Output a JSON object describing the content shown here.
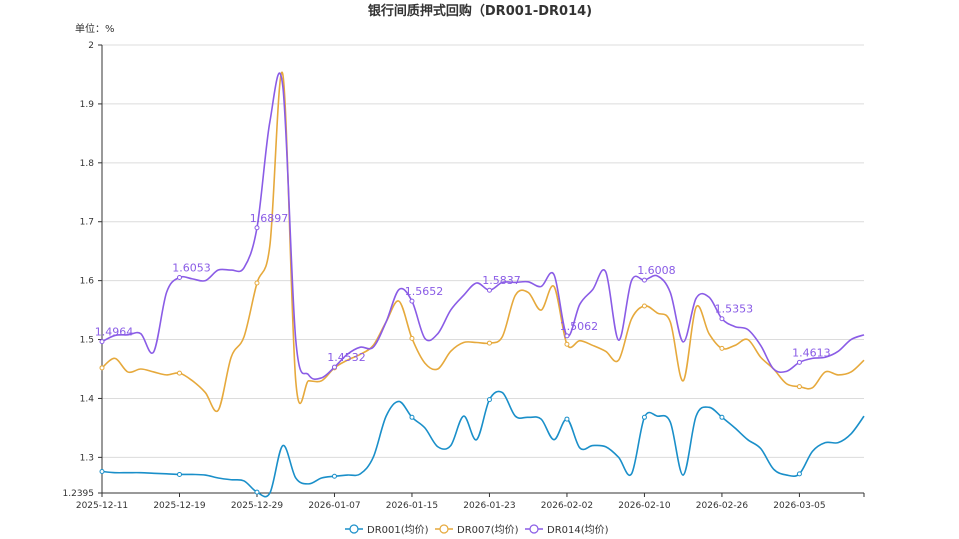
{
  "chart_data": {
    "type": "line",
    "title": "银行间质押式回购（DR001-DR014)",
    "unit_label": "单位：%",
    "ylim": [
      1.2395,
      2
    ],
    "y_ticks": [
      "2",
      "1.9",
      "1.8",
      "1.7",
      "1.6",
      "1.5",
      "1.4",
      "1.3",
      "1.2395"
    ],
    "x_tick_labels": [
      "2025-12-11",
      "2025-12-19",
      "2025-12-29",
      "2026-01-07",
      "2026-01-15",
      "2026-01-23",
      "2026-02-02",
      "2026-02-10",
      "2026-02-26",
      "2026-03-05"
    ],
    "grid": true,
    "smooth": true,
    "legend_position": "bottom",
    "labeled_point_indices": [
      0,
      6,
      12,
      18,
      24,
      30,
      36,
      42,
      48,
      54
    ],
    "series": [
      {
        "name": "DR001(均价)",
        "color": "#1a8fc9",
        "values": [
          1.276,
          1.274,
          1.274,
          1.274,
          1.273,
          1.272,
          1.271,
          1.271,
          1.27,
          1.265,
          1.262,
          1.26,
          1.241,
          1.2395,
          1.32,
          1.265,
          1.255,
          1.265,
          1.268,
          1.27,
          1.272,
          1.3,
          1.37,
          1.395,
          1.368,
          1.35,
          1.318,
          1.32,
          1.37,
          1.33,
          1.398,
          1.41,
          1.37,
          1.368,
          1.365,
          1.33,
          1.365,
          1.316,
          1.32,
          1.318,
          1.3,
          1.272,
          1.368,
          1.37,
          1.36,
          1.27,
          1.37,
          1.385,
          1.368,
          1.35,
          1.33,
          1.315,
          1.28,
          1.27,
          1.272,
          1.31,
          1.325,
          1.325,
          1.34,
          1.37
        ]
      },
      {
        "name": "DR007(均价)",
        "color": "#e6a93c",
        "values": [
          1.452,
          1.468,
          1.445,
          1.45,
          1.445,
          1.44,
          1.443,
          1.43,
          1.41,
          1.38,
          1.47,
          1.505,
          1.596,
          1.66,
          1.95,
          1.43,
          1.43,
          1.43,
          1.452,
          1.465,
          1.475,
          1.49,
          1.53,
          1.565,
          1.502,
          1.46,
          1.45,
          1.48,
          1.495,
          1.495,
          1.494,
          1.505,
          1.575,
          1.58,
          1.55,
          1.59,
          1.492,
          1.498,
          1.49,
          1.48,
          1.465,
          1.535,
          1.557,
          1.545,
          1.53,
          1.43,
          1.555,
          1.51,
          1.485,
          1.49,
          1.5,
          1.47,
          1.45,
          1.425,
          1.42,
          1.418,
          1.445,
          1.44,
          1.445,
          1.465
        ]
      },
      {
        "name": "DR014(均价)",
        "color": "#8a5ce6",
        "values": [
          1.4964,
          1.507,
          1.508,
          1.51,
          1.479,
          1.58,
          1.6053,
          1.603,
          1.6,
          1.618,
          1.618,
          1.622,
          1.6897,
          1.87,
          1.93,
          1.5,
          1.44,
          1.435,
          1.4532,
          1.475,
          1.487,
          1.487,
          1.53,
          1.585,
          1.5652,
          1.502,
          1.51,
          1.55,
          1.575,
          1.596,
          1.5837,
          1.597,
          1.597,
          1.598,
          1.59,
          1.61,
          1.5062,
          1.56,
          1.585,
          1.615,
          1.499,
          1.6,
          1.6008,
          1.608,
          1.58,
          1.496,
          1.57,
          1.572,
          1.5353,
          1.522,
          1.517,
          1.49,
          1.45,
          1.446,
          1.4613,
          1.468,
          1.47,
          1.48,
          1.5,
          1.508
        ]
      }
    ]
  }
}
